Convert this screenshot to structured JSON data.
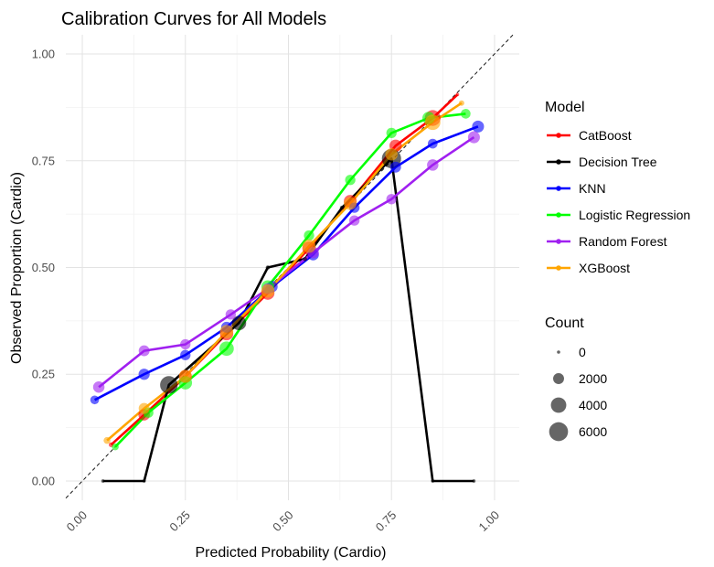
{
  "chart_data": {
    "type": "line",
    "title": "Calibration Curves for All Models",
    "xlabel": "Predicted Probability (Cardio)",
    "ylabel": "Observed Proportion (Cardio)",
    "xlim": [
      -0.04,
      1.06
    ],
    "ylim": [
      -0.045,
      1.045
    ],
    "x_ticks": [
      0,
      0.25,
      0.5,
      0.75,
      1
    ],
    "x_tick_labels": [
      "0.00",
      "0.25",
      "0.50",
      "0.75",
      "1.00"
    ],
    "y_ticks": [
      0,
      0.25,
      0.5,
      0.75,
      1
    ],
    "y_tick_labels": [
      "0.00",
      "0.25",
      "0.50",
      "0.75",
      "1.00"
    ],
    "grid": true,
    "reference_line": "diagonal dashed y = x",
    "legend_position": "right",
    "legend_model_title": "Model",
    "legend_count_title": "Count",
    "count_legend": [
      {
        "label": "0",
        "count": 0
      },
      {
        "label": "2000",
        "count": 2000
      },
      {
        "label": "4000",
        "count": 4000
      },
      {
        "label": "6000",
        "count": 6000
      }
    ],
    "series": [
      {
        "name": "CatBoost",
        "color": "#ff0000",
        "points": [
          {
            "x": 0.07,
            "y": 0.085,
            "count": 400
          },
          {
            "x": 0.15,
            "y": 0.155,
            "count": 2200
          },
          {
            "x": 0.25,
            "y": 0.245,
            "count": 2800
          },
          {
            "x": 0.35,
            "y": 0.345,
            "count": 3000
          },
          {
            "x": 0.45,
            "y": 0.44,
            "count": 3000
          },
          {
            "x": 0.55,
            "y": 0.545,
            "count": 3000
          },
          {
            "x": 0.65,
            "y": 0.655,
            "count": 2800
          },
          {
            "x": 0.76,
            "y": 0.785,
            "count": 2600
          },
          {
            "x": 0.85,
            "y": 0.85,
            "count": 4200
          },
          {
            "x": 0.91,
            "y": 0.905,
            "count": 200
          }
        ]
      },
      {
        "name": "Decision Tree",
        "color": "#000000",
        "points": [
          {
            "x": 0.05,
            "y": 0.0,
            "count": 50
          },
          {
            "x": 0.15,
            "y": 0.0,
            "count": 50
          },
          {
            "x": 0.21,
            "y": 0.225,
            "count": 5200
          },
          {
            "x": 0.38,
            "y": 0.37,
            "count": 3500
          },
          {
            "x": 0.45,
            "y": 0.5,
            "count": 300
          },
          {
            "x": 0.54,
            "y": 0.52,
            "count": 300
          },
          {
            "x": 0.63,
            "y": 0.64,
            "count": 300
          },
          {
            "x": 0.75,
            "y": 0.755,
            "count": 6200
          },
          {
            "x": 0.85,
            "y": 0.0,
            "count": 50
          },
          {
            "x": 0.95,
            "y": 0.0,
            "count": 50
          }
        ]
      },
      {
        "name": "KNN",
        "color": "#0000ff",
        "points": [
          {
            "x": 0.03,
            "y": 0.19,
            "count": 1300
          },
          {
            "x": 0.15,
            "y": 0.25,
            "count": 2100
          },
          {
            "x": 0.25,
            "y": 0.295,
            "count": 1800
          },
          {
            "x": 0.35,
            "y": 0.36,
            "count": 2000
          },
          {
            "x": 0.46,
            "y": 0.455,
            "count": 2200
          },
          {
            "x": 0.56,
            "y": 0.53,
            "count": 2200
          },
          {
            "x": 0.66,
            "y": 0.64,
            "count": 1800
          },
          {
            "x": 0.76,
            "y": 0.735,
            "count": 2000
          },
          {
            "x": 0.85,
            "y": 0.79,
            "count": 1600
          },
          {
            "x": 0.96,
            "y": 0.83,
            "count": 2400
          }
        ]
      },
      {
        "name": "Logistic Regression",
        "color": "#00ff00",
        "points": [
          {
            "x": 0.08,
            "y": 0.08,
            "count": 800
          },
          {
            "x": 0.16,
            "y": 0.16,
            "count": 1800
          },
          {
            "x": 0.25,
            "y": 0.23,
            "count": 3000
          },
          {
            "x": 0.35,
            "y": 0.31,
            "count": 3500
          },
          {
            "x": 0.45,
            "y": 0.455,
            "count": 2800
          },
          {
            "x": 0.55,
            "y": 0.575,
            "count": 1800
          },
          {
            "x": 0.65,
            "y": 0.705,
            "count": 1800
          },
          {
            "x": 0.75,
            "y": 0.815,
            "count": 1800
          },
          {
            "x": 0.84,
            "y": 0.85,
            "count": 2600
          },
          {
            "x": 0.93,
            "y": 0.86,
            "count": 1600
          }
        ]
      },
      {
        "name": "Random Forest",
        "color": "#a020f0",
        "points": [
          {
            "x": 0.04,
            "y": 0.22,
            "count": 2200
          },
          {
            "x": 0.15,
            "y": 0.305,
            "count": 2000
          },
          {
            "x": 0.25,
            "y": 0.32,
            "count": 1800
          },
          {
            "x": 0.36,
            "y": 0.39,
            "count": 1800
          },
          {
            "x": 0.45,
            "y": 0.45,
            "count": 2000
          },
          {
            "x": 0.56,
            "y": 0.535,
            "count": 2200
          },
          {
            "x": 0.66,
            "y": 0.61,
            "count": 1800
          },
          {
            "x": 0.75,
            "y": 0.66,
            "count": 1800
          },
          {
            "x": 0.85,
            "y": 0.74,
            "count": 2200
          },
          {
            "x": 0.95,
            "y": 0.805,
            "count": 2400
          }
        ]
      },
      {
        "name": "XGBoost",
        "color": "#ffa500",
        "points": [
          {
            "x": 0.06,
            "y": 0.095,
            "count": 800
          },
          {
            "x": 0.15,
            "y": 0.17,
            "count": 2000
          },
          {
            "x": 0.25,
            "y": 0.245,
            "count": 2800
          },
          {
            "x": 0.35,
            "y": 0.35,
            "count": 3000
          },
          {
            "x": 0.45,
            "y": 0.445,
            "count": 3000
          },
          {
            "x": 0.55,
            "y": 0.55,
            "count": 3000
          },
          {
            "x": 0.65,
            "y": 0.65,
            "count": 2800
          },
          {
            "x": 0.75,
            "y": 0.765,
            "count": 2600
          },
          {
            "x": 0.85,
            "y": 0.84,
            "count": 4000
          },
          {
            "x": 0.92,
            "y": 0.885,
            "count": 500
          }
        ]
      }
    ]
  }
}
